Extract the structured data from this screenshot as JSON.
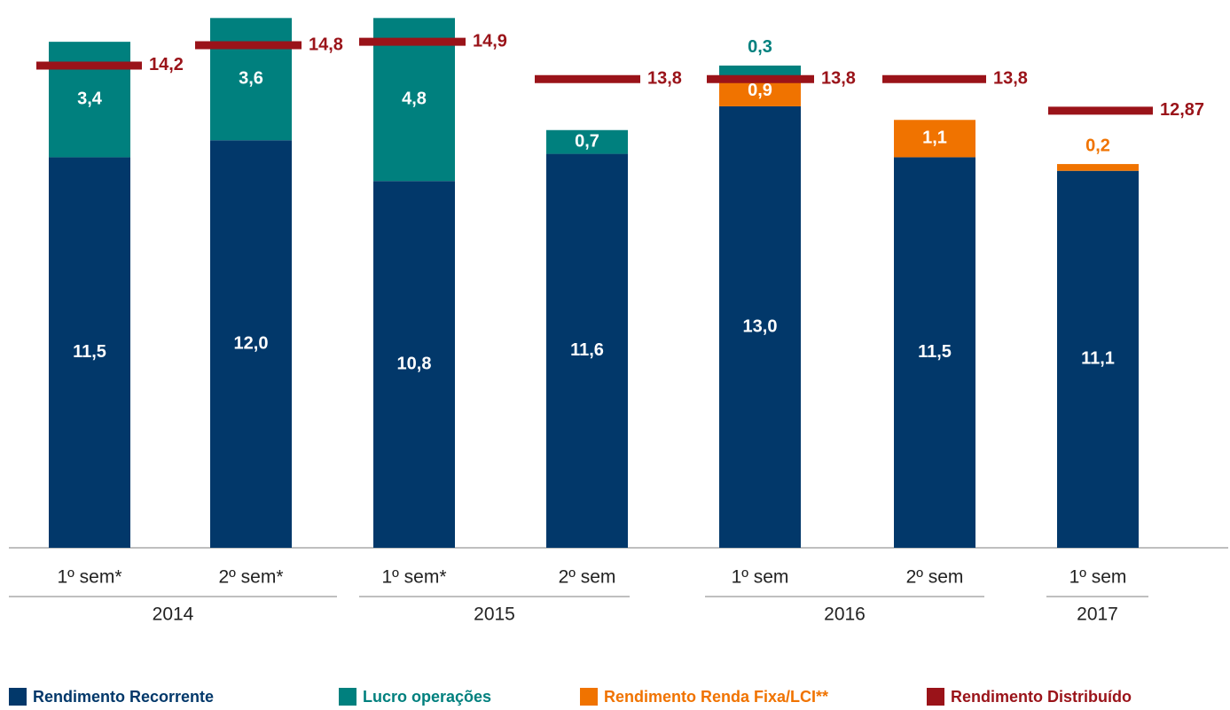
{
  "chart_data": {
    "type": "bar",
    "stacked": true,
    "categories": [
      "1º sem*",
      "2º sem*",
      "1º sem*",
      "2º sem",
      "1º sem",
      "2º sem",
      "1º sem"
    ],
    "groups": [
      "2014",
      "2015",
      "2016",
      "2017"
    ],
    "ylim": [
      0,
      16
    ],
    "series": [
      {
        "name": "Rendimento Recorrente",
        "color": "#02386a",
        "values": [
          11.5,
          12.0,
          10.8,
          11.6,
          13.0,
          11.5,
          11.1
        ],
        "value_labels": [
          "11,5",
          "12,0",
          "10,8",
          "11,6",
          "13,0",
          "11,5",
          "11,1"
        ]
      },
      {
        "name": "Lucro operações",
        "color": "#00807e",
        "values": [
          3.4,
          3.6,
          4.8,
          0.7,
          0.3,
          null,
          null
        ],
        "value_labels": [
          "3,4",
          "3,6",
          "4,8",
          "0,7",
          "0,3",
          null,
          null
        ]
      },
      {
        "name": "Rendimento Renda Fixa/LCI**",
        "color": "#f07300",
        "values": [
          null,
          null,
          null,
          null,
          0.9,
          1.1,
          0.2
        ],
        "value_labels": [
          null,
          null,
          null,
          null,
          "0,9",
          "1,1",
          "0,2"
        ]
      },
      {
        "name": "Rendimento Distribuído",
        "color": "#9a1319",
        "type": "marker-line",
        "values": [
          14.2,
          14.8,
          14.9,
          13.8,
          13.8,
          13.8,
          12.87
        ],
        "value_labels": [
          "14,2",
          "14,8",
          "14,9",
          "13,8",
          "13,8",
          "13,8",
          "12,87"
        ]
      }
    ]
  }
}
